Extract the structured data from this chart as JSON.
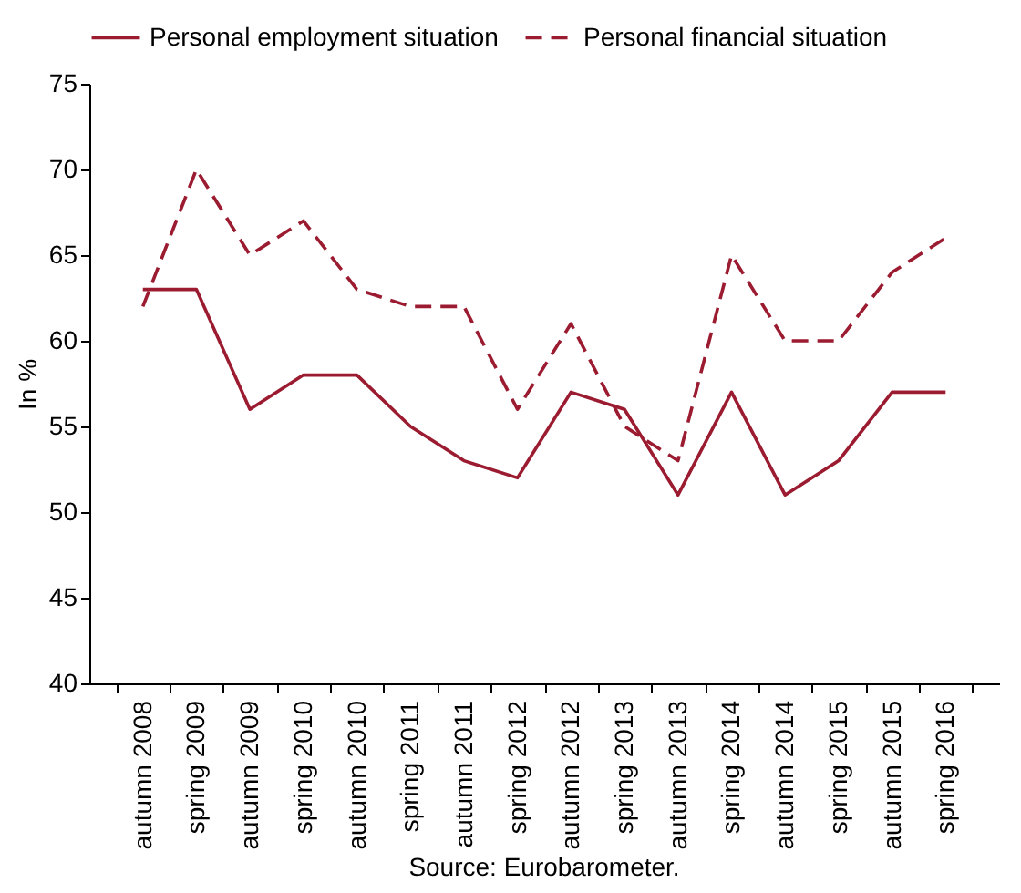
{
  "chart_data": {
    "type": "line",
    "ylabel": "In %",
    "annotations": [
      "Source: Eurobarometer."
    ],
    "categories": [
      "autumn 2008",
      "spring 2009",
      "autumn 2009",
      "spring 2010",
      "autumn 2010",
      "spring 2011",
      "autumn 2011",
      "spring 2012",
      "autumn 2012",
      "spring 2013",
      "autumn 2013",
      "spring 2014",
      "autumn 2014",
      "spring 2015",
      "autumn 2015",
      "spring 2016"
    ],
    "series": [
      {
        "name": "Personal employment situation",
        "color": "#9b1b30",
        "line_style": "solid",
        "values": [
          63,
          63,
          56,
          58,
          58,
          55,
          53,
          52,
          57,
          56,
          51,
          57,
          51,
          53,
          57,
          57
        ]
      },
      {
        "name": "Personal financial situation",
        "color": "#9b1b30",
        "line_style": "dashed",
        "values": [
          62,
          70,
          65,
          67,
          63,
          62,
          62,
          56,
          61,
          55,
          53,
          65,
          60,
          60,
          64,
          66
        ]
      }
    ],
    "ylim": [
      40,
      75
    ],
    "yticks": [
      40,
      45,
      50,
      55,
      60,
      65,
      70,
      75
    ],
    "grid": false,
    "legend": "top",
    "marker": "none"
  }
}
